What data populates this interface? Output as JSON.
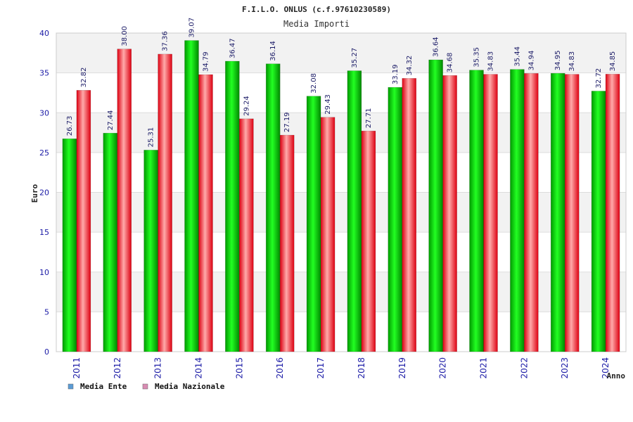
{
  "chart_data": {
    "type": "bar",
    "title": "F.I.L.O. ONLUS (c.f.97610230589)",
    "subtitle": "Media Importi",
    "xlabel": "Anno",
    "ylabel": "Euro",
    "ylim": [
      0,
      40
    ],
    "yticks": [
      0,
      5,
      10,
      15,
      20,
      25,
      30,
      35,
      40
    ],
    "grid": true,
    "legend_position": "bottom-left",
    "categories": [
      "2011",
      "2012",
      "2013",
      "2014",
      "2015",
      "2016",
      "2017",
      "2018",
      "2019",
      "2020",
      "2021",
      "2022",
      "2023",
      "2024"
    ],
    "series": [
      {
        "name": "Media Ente",
        "color": "#00cc00",
        "legend_color": "#5b9bd5",
        "values": [
          26.73,
          27.44,
          25.31,
          39.07,
          36.47,
          36.14,
          32.08,
          35.27,
          33.19,
          36.64,
          35.35,
          35.44,
          34.95,
          32.72
        ],
        "labels": [
          "26.73",
          "27.44",
          "25.31",
          "39.07",
          "36.47",
          "36.14",
          "32.08",
          "35.27",
          "33.19",
          "36.64",
          "35.35",
          "35.44",
          "34.95",
          "32.72"
        ]
      },
      {
        "name": "Media Nazionale",
        "color": "#ee2233",
        "legend_color": "#d98cb3",
        "values": [
          32.82,
          38.0,
          37.36,
          34.79,
          29.24,
          27.19,
          29.43,
          27.71,
          34.32,
          34.68,
          34.83,
          34.94,
          34.83,
          34.85
        ],
        "labels": [
          "32.82",
          "38.00",
          "37.36",
          "34.79",
          "29.24",
          "27.19",
          "29.43",
          "27.71",
          "34.32",
          "34.68",
          "34.83",
          "34.94",
          "34.83",
          "34.85"
        ]
      }
    ]
  }
}
